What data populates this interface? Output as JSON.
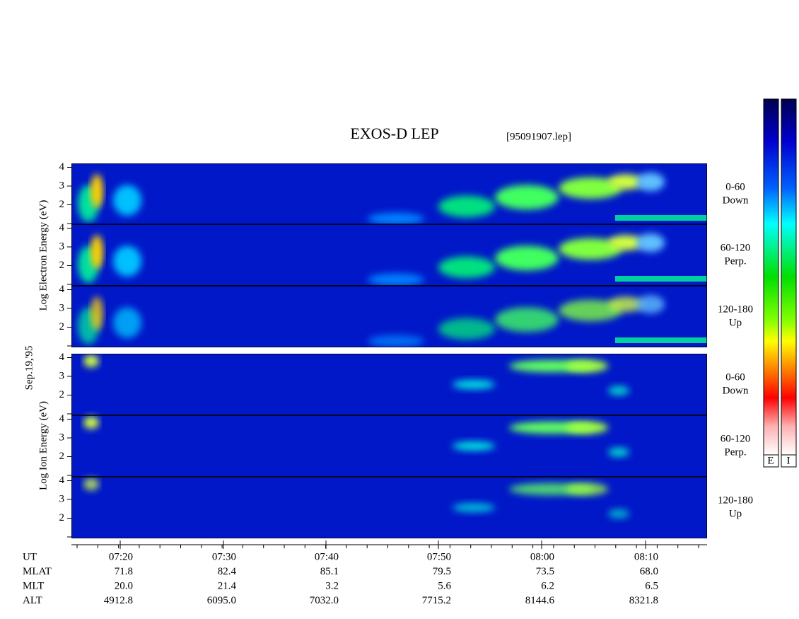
{
  "header": {
    "title": "EXOS-D LEP",
    "file": "[95091907.lep]"
  },
  "date": "Sep.19,'95",
  "axis_labels": {
    "electron": "Log Electron Energy (eV)",
    "ion": "Log Ion Energy (eV)"
  },
  "panels": [
    {
      "angle": "0-60",
      "direction": "Down",
      "yticks": [
        2,
        3,
        4
      ]
    },
    {
      "angle": "60-120",
      "direction": "Perp.",
      "yticks": [
        2,
        3,
        4
      ]
    },
    {
      "angle": "120-180",
      "direction": "Up",
      "yticks": [
        2,
        3,
        4
      ]
    },
    {
      "angle": "0-60",
      "direction": "Down",
      "yticks": [
        2,
        3,
        4
      ]
    },
    {
      "angle": "60-120",
      "direction": "Perp.",
      "yticks": [
        2,
        3,
        4
      ]
    },
    {
      "angle": "120-180",
      "direction": "Up",
      "yticks": [
        2,
        3,
        4
      ]
    }
  ],
  "ephemeris": {
    "rows": [
      {
        "label": "UT",
        "values": [
          "07:20",
          "07:30",
          "07:40",
          "07:50",
          "08:00",
          "08:10"
        ]
      },
      {
        "label": "MLAT",
        "values": [
          "71.8",
          "82.4",
          "85.1",
          "79.5",
          "73.5",
          "68.0"
        ]
      },
      {
        "label": "MLT",
        "values": [
          "20.0",
          "21.4",
          "3.2",
          "5.6",
          "6.2",
          "6.5"
        ]
      },
      {
        "label": "ALT",
        "values": [
          "4912.8",
          "6095.0",
          "7032.0",
          "7715.2",
          "8144.6",
          "8321.8"
        ]
      }
    ]
  },
  "colorbars": [
    "E",
    "I"
  ]
}
